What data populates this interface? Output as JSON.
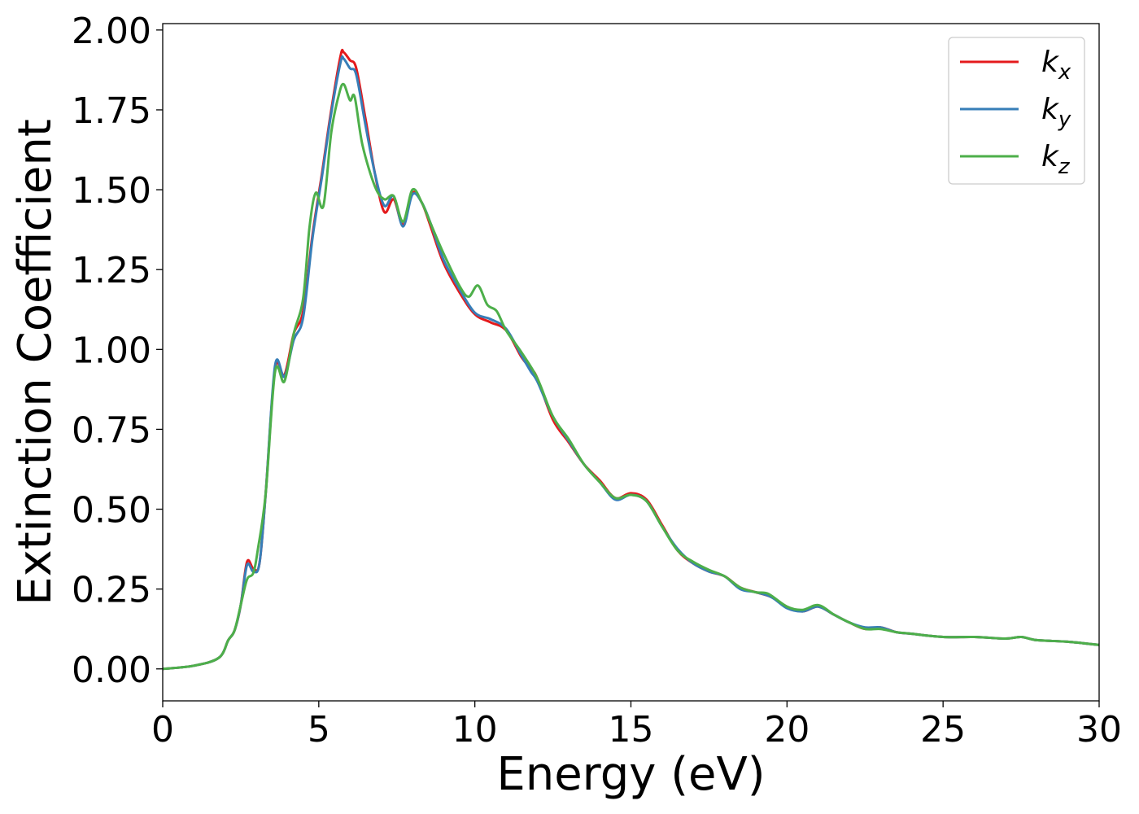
{
  "chart_data": {
    "type": "line",
    "xlabel": "Energy (eV)",
    "ylabel": "Extinction Coefficient",
    "xlim": [
      0,
      30
    ],
    "ylim": [
      -0.1,
      2.02
    ],
    "xticks": [
      0,
      5,
      10,
      15,
      20,
      25,
      30
    ],
    "xtick_labels": [
      "0",
      "5",
      "10",
      "15",
      "20",
      "25",
      "30"
    ],
    "yticks": [
      0,
      0.25,
      0.5,
      0.75,
      1.0,
      1.25,
      1.5,
      1.75,
      2.0
    ],
    "ytick_labels": [
      "0.00",
      "0.25",
      "0.50",
      "0.75",
      "1.00",
      "1.25",
      "1.50",
      "1.75",
      "2.00"
    ],
    "grid": false,
    "legend_position": "top-right",
    "series": [
      {
        "name": "k_x",
        "label_base": "k",
        "label_sub": "x",
        "color": "#e41a1c",
        "x": [
          0,
          1,
          1.8,
          2.1,
          2.3,
          2.5,
          2.7,
          2.9,
          3.1,
          3.3,
          3.6,
          3.9,
          4.2,
          4.5,
          4.8,
          5.1,
          5.4,
          5.7,
          5.8,
          6.0,
          6.2,
          6.5,
          6.8,
          7.1,
          7.4,
          7.7,
          8.0,
          8.3,
          8.6,
          9.0,
          9.5,
          10.0,
          10.5,
          11.0,
          11.5,
          11.8,
          12.0,
          12.5,
          13.0,
          13.5,
          14.0,
          14.5,
          15.0,
          15.5,
          16.0,
          16.5,
          17.0,
          17.5,
          18.0,
          18.5,
          19.0,
          19.5,
          20.0,
          20.5,
          21.0,
          21.5,
          22.0,
          22.5,
          23.0,
          23.5,
          24.0,
          25.0,
          26.0,
          27.0,
          27.5,
          28.0,
          29.0,
          30.0
        ],
        "y": [
          0,
          0.01,
          0.035,
          0.09,
          0.12,
          0.2,
          0.335,
          0.315,
          0.33,
          0.55,
          0.94,
          0.92,
          1.05,
          1.12,
          1.36,
          1.55,
          1.75,
          1.92,
          1.93,
          1.905,
          1.88,
          1.72,
          1.55,
          1.43,
          1.47,
          1.39,
          1.49,
          1.46,
          1.38,
          1.27,
          1.18,
          1.11,
          1.085,
          1.06,
          0.975,
          0.94,
          0.91,
          0.78,
          0.71,
          0.64,
          0.59,
          0.535,
          0.55,
          0.53,
          0.45,
          0.37,
          0.33,
          0.305,
          0.29,
          0.255,
          0.24,
          0.225,
          0.195,
          0.18,
          0.195,
          0.17,
          0.145,
          0.125,
          0.13,
          0.115,
          0.11,
          0.1,
          0.1,
          0.095,
          0.1,
          0.09,
          0.085,
          0.075
        ]
      },
      {
        "name": "k_y",
        "label_base": "k",
        "label_sub": "y",
        "color": "#377eb8",
        "x": [
          0,
          1,
          1.8,
          2.1,
          2.3,
          2.5,
          2.7,
          2.9,
          3.1,
          3.3,
          3.6,
          3.9,
          4.2,
          4.5,
          4.8,
          5.1,
          5.4,
          5.7,
          5.8,
          6.0,
          6.2,
          6.5,
          6.8,
          7.1,
          7.4,
          7.7,
          8.0,
          8.3,
          8.6,
          9.0,
          9.5,
          10.0,
          10.5,
          11.0,
          11.5,
          11.8,
          12.0,
          12.5,
          13.0,
          13.5,
          14.0,
          14.5,
          15.0,
          15.5,
          16.0,
          16.5,
          17.0,
          17.5,
          18.0,
          18.5,
          19.0,
          19.5,
          20.0,
          20.5,
          21.0,
          21.5,
          22.0,
          22.5,
          23.0,
          23.5,
          24.0,
          25.0,
          26.0,
          27.0,
          27.5,
          28.0,
          29.0,
          30.0
        ],
        "y": [
          0,
          0.01,
          0.035,
          0.09,
          0.12,
          0.2,
          0.325,
          0.305,
          0.33,
          0.55,
          0.95,
          0.915,
          1.03,
          1.1,
          1.35,
          1.54,
          1.74,
          1.9,
          1.91,
          1.88,
          1.86,
          1.7,
          1.55,
          1.45,
          1.48,
          1.385,
          1.485,
          1.46,
          1.39,
          1.28,
          1.19,
          1.115,
          1.095,
          1.065,
          0.98,
          0.93,
          0.9,
          0.79,
          0.715,
          0.64,
          0.585,
          0.53,
          0.545,
          0.525,
          0.445,
          0.375,
          0.33,
          0.305,
          0.29,
          0.25,
          0.24,
          0.225,
          0.19,
          0.18,
          0.195,
          0.17,
          0.145,
          0.13,
          0.13,
          0.115,
          0.11,
          0.1,
          0.1,
          0.095,
          0.1,
          0.09,
          0.085,
          0.075
        ]
      },
      {
        "name": "k_z",
        "label_base": "k",
        "label_sub": "z",
        "color": "#4daf4a",
        "x": [
          0,
          1,
          1.8,
          2.1,
          2.3,
          2.5,
          2.7,
          2.9,
          3.05,
          3.3,
          3.6,
          3.9,
          4.2,
          4.5,
          4.7,
          4.9,
          5.15,
          5.4,
          5.65,
          5.8,
          6.0,
          6.15,
          6.4,
          6.8,
          7.1,
          7.4,
          7.7,
          8.0,
          8.3,
          8.6,
          9.0,
          9.5,
          9.8,
          10.1,
          10.4,
          10.7,
          11.0,
          11.5,
          12.0,
          12.5,
          13.0,
          13.5,
          14.0,
          14.5,
          15.0,
          15.5,
          16.0,
          16.5,
          17.0,
          17.5,
          18.0,
          18.5,
          19.0,
          19.4,
          20.0,
          20.5,
          21.0,
          21.5,
          22.0,
          22.5,
          23.0,
          23.5,
          24.0,
          25.0,
          26.0,
          27.0,
          27.5,
          28.0,
          29.0,
          30.0
        ],
        "y": [
          0,
          0.01,
          0.035,
          0.09,
          0.12,
          0.2,
          0.28,
          0.3,
          0.375,
          0.55,
          0.93,
          0.9,
          1.05,
          1.16,
          1.38,
          1.49,
          1.45,
          1.68,
          1.8,
          1.83,
          1.78,
          1.79,
          1.64,
          1.51,
          1.47,
          1.48,
          1.4,
          1.5,
          1.46,
          1.39,
          1.3,
          1.2,
          1.165,
          1.2,
          1.14,
          1.12,
          1.06,
          0.99,
          0.91,
          0.79,
          0.72,
          0.64,
          0.585,
          0.535,
          0.545,
          0.525,
          0.445,
          0.37,
          0.335,
          0.31,
          0.29,
          0.255,
          0.24,
          0.235,
          0.195,
          0.185,
          0.2,
          0.17,
          0.145,
          0.125,
          0.125,
          0.115,
          0.11,
          0.1,
          0.1,
          0.095,
          0.1,
          0.09,
          0.085,
          0.075
        ]
      }
    ]
  }
}
